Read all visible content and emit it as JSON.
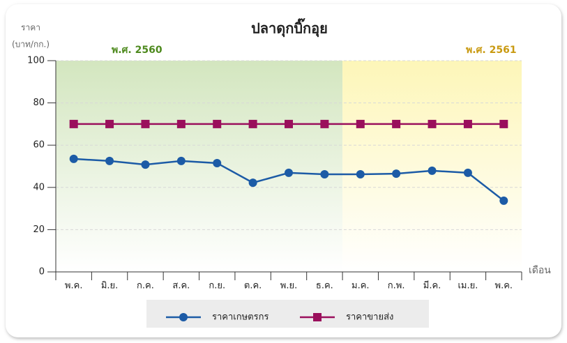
{
  "chart_data": {
    "type": "line",
    "title": "ปลาดุกบิ๊กอุย",
    "y_label": [
      "ราคา",
      "(บาท/กก.)"
    ],
    "x_label": "เดือน",
    "periods": [
      {
        "label": "พ.ศ. 2560",
        "categories": 8,
        "color": "#d3e6bf",
        "label_color": "#4e8a1e"
      },
      {
        "label": "พ.ศ. 2561",
        "categories": 5,
        "color": "#fdf6b8",
        "label_color": "#c99a12"
      }
    ],
    "categories": [
      "พ.ค.",
      "มิ.ย.",
      "ก.ค.",
      "ส.ค.",
      "ก.ย.",
      "ต.ค.",
      "พ.ย.",
      "ธ.ค.",
      "ม.ค.",
      "ก.พ.",
      "มี.ค.",
      "เม.ย.",
      "พ.ค."
    ],
    "series": [
      {
        "name": "ราคาเกษตรกร",
        "color": "#1c5ba6",
        "marker": "circle",
        "values": [
          53.5,
          52.5,
          50.8,
          52.5,
          51.5,
          42.2,
          46.9,
          46.2,
          46.2,
          46.5,
          47.9,
          46.9,
          33.7
        ]
      },
      {
        "name": "ราคาขายส่ง",
        "color": "#9a0f5c",
        "marker": "square",
        "values": [
          70,
          70,
          70,
          70,
          70,
          70,
          70,
          70,
          70,
          70,
          70,
          70,
          70
        ]
      }
    ],
    "ylim": [
      0,
      100
    ],
    "yticks": [
      0,
      20,
      40,
      60,
      80,
      100
    ],
    "grid": true
  }
}
